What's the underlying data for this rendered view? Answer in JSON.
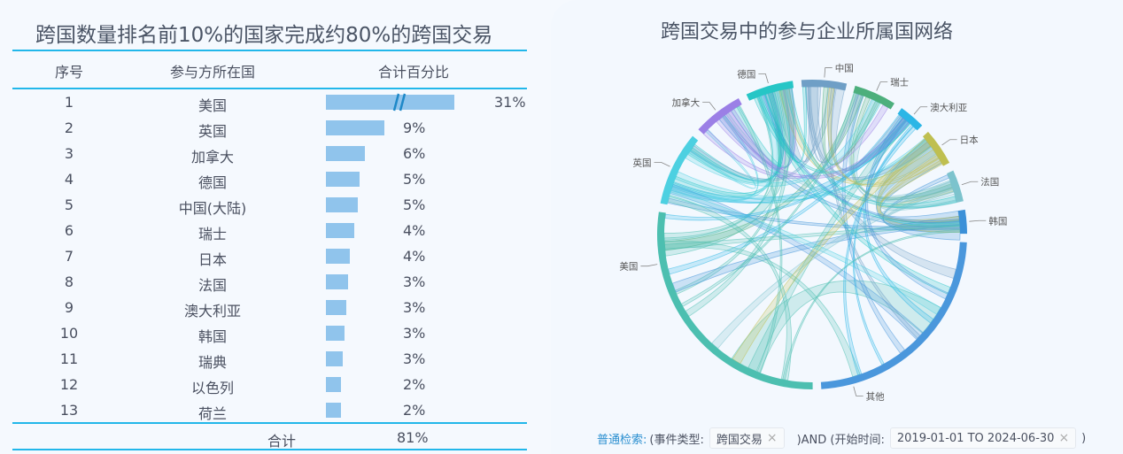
{
  "table": {
    "title": "跨国数量排名前10%的国家完成约80%的跨国交易",
    "headers": [
      "序号",
      "参与方所在国",
      "合计百分比"
    ],
    "rows": [
      {
        "index": "1",
        "country": "美国",
        "percent": "31%",
        "value": 31,
        "broken_axis": true
      },
      {
        "index": "2",
        "country": "英国",
        "percent": "9%",
        "value": 9
      },
      {
        "index": "3",
        "country": "加拿大",
        "percent": "6%",
        "value": 6
      },
      {
        "index": "4",
        "country": "德国",
        "percent": "5%",
        "value": 5.2
      },
      {
        "index": "5",
        "country": "中国(大陆)",
        "percent": "5%",
        "value": 4.9
      },
      {
        "index": "6",
        "country": "瑞士",
        "percent": "4%",
        "value": 4.4
      },
      {
        "index": "7",
        "country": "日本",
        "percent": "4%",
        "value": 3.7
      },
      {
        "index": "8",
        "country": "法国",
        "percent": "3%",
        "value": 3.4
      },
      {
        "index": "9",
        "country": "澳大利亚",
        "percent": "3%",
        "value": 3.2
      },
      {
        "index": "10",
        "country": "韩国",
        "percent": "3%",
        "value": 2.9
      },
      {
        "index": "11",
        "country": "瑞典",
        "percent": "3%",
        "value": 2.6
      },
      {
        "index": "12",
        "country": "以色列",
        "percent": "2%",
        "value": 2.3
      },
      {
        "index": "13",
        "country": "荷兰",
        "percent": "2%",
        "value": 2.3
      }
    ],
    "total_label": "合计",
    "total_value": "81%",
    "bar_color": "#90c4ec",
    "accent_color": "#22b7ea"
  },
  "chart_data": {
    "type": "chord",
    "title": "跨国交易中的参与企业所属国网络",
    "nodes": [
      {
        "name": "中国",
        "weight": 17,
        "color": "#6f9fc6"
      },
      {
        "name": "瑞士",
        "weight": 16,
        "color": "#4daf7c"
      },
      {
        "name": "澳大利亚",
        "weight": 10,
        "color": "#2bb6e6"
      },
      {
        "name": "日本",
        "weight": 14,
        "color": "#bfbf50"
      },
      {
        "name": "法国",
        "weight": 12,
        "color": "#7cc3cd"
      },
      {
        "name": "韩国",
        "weight": 9,
        "color": "#3b90d8"
      },
      {
        "name": "其他",
        "weight": 84,
        "color": "#4a97dc"
      },
      {
        "name": "美国",
        "weight": 99,
        "color": "#4cbfb0"
      },
      {
        "name": "英国",
        "weight": 28,
        "color": "#4dd0e1"
      },
      {
        "name": "加拿大",
        "weight": 19,
        "color": "#9b7fe6"
      },
      {
        "name": "德国",
        "weight": 18,
        "color": "#26c6c6"
      }
    ]
  },
  "search": {
    "label": "普通检索:",
    "part1": "(事件类型:",
    "tag1": "跨国交易",
    "part2": ")AND (开始时间:",
    "tag2": "2019-01-01 TO 2024-06-30",
    "part3": ")",
    "close_icon": "×"
  }
}
